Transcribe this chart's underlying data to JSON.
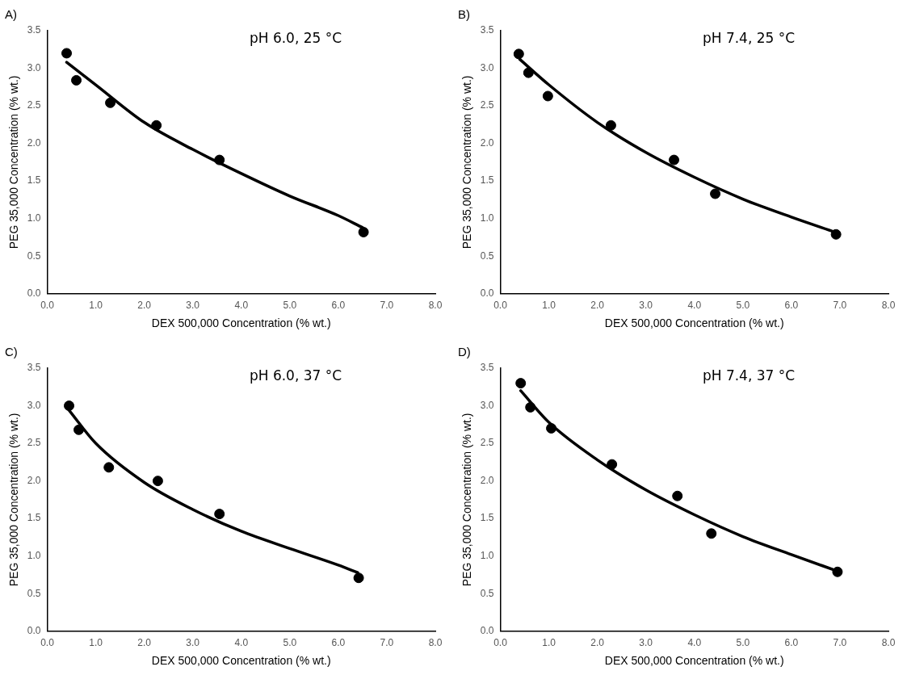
{
  "chart_data": [
    {
      "type": "scatter",
      "title": "A)",
      "xlabel": "DEX 500,000 Concentration (% wt.)",
      "ylabel": "PEG 35,000 Concentration (% wt.)",
      "annotations": [
        "pH 6.0, 25 °C"
      ],
      "grid": false,
      "legend": false,
      "xlim": [
        0,
        8
      ],
      "xticks": [
        {
          "value": 0,
          "label": "0.0"
        },
        {
          "value": 1,
          "label": "1.0"
        },
        {
          "value": 2,
          "label": "2.0"
        },
        {
          "value": 3,
          "label": "3.0"
        },
        {
          "value": 4,
          "label": "4.0"
        },
        {
          "value": 5,
          "label": "5.0"
        },
        {
          "value": 6,
          "label": "6.0"
        },
        {
          "value": 7,
          "label": "7.0"
        },
        {
          "value": 8,
          "label": "8.0"
        }
      ],
      "ylim": [
        0,
        3.5
      ],
      "yticks": [
        {
          "value": 0,
          "label": "0.0"
        },
        0.5,
        {
          "value": 1,
          "label": "1.0"
        },
        1.5,
        {
          "value": 2,
          "label": "2.0"
        },
        2.5,
        {
          "value": 3,
          "label": "3.0"
        },
        3.5
      ],
      "series": [
        {
          "type": "scatter",
          "marker": "circle",
          "color": "#000000",
          "x": [
            0.4,
            0.6,
            1.3,
            2.25,
            3.55,
            6.52
          ],
          "values": [
            3.2,
            2.84,
            2.54,
            2.24,
            1.78,
            0.82
          ]
        },
        {
          "type": "line",
          "marker": "none",
          "line_style": "solid",
          "color": "#000000",
          "x": [
            0.4,
            1,
            2,
            3,
            4,
            5,
            6,
            6.5
          ],
          "values": [
            3.08,
            2.78,
            2.28,
            1.92,
            1.6,
            1.3,
            1.04,
            0.88
          ]
        }
      ]
    },
    {
      "type": "scatter",
      "title": "B)",
      "xlabel": "DEX 500,000 Concentration (% wt.)",
      "ylabel": "PEG 35,000 Concentration (% wt.)",
      "annotations": [
        "pH 7.4, 25 °C"
      ],
      "grid": false,
      "legend": false,
      "xlim": [
        0,
        8
      ],
      "xticks": [
        {
          "value": 0,
          "label": "0.0"
        },
        {
          "value": 1,
          "label": "1.0"
        },
        {
          "value": 2,
          "label": "2.0"
        },
        {
          "value": 3,
          "label": "3.0"
        },
        {
          "value": 4,
          "label": "4.0"
        },
        {
          "value": 5,
          "label": "5.0"
        },
        {
          "value": 6,
          "label": "6.0"
        },
        {
          "value": 7,
          "label": "7.0"
        },
        {
          "value": 8,
          "label": "8.0"
        }
      ],
      "ylim": [
        0,
        3.5
      ],
      "yticks": [
        {
          "value": 0,
          "label": "0.0"
        },
        0.5,
        {
          "value": 1,
          "label": "1.0"
        },
        1.5,
        {
          "value": 2,
          "label": "2.0"
        },
        2.5,
        {
          "value": 3,
          "label": "3.0"
        },
        3.5
      ],
      "series": [
        {
          "type": "scatter",
          "marker": "circle",
          "color": "#000000",
          "x": [
            0.38,
            0.58,
            0.98,
            2.28,
            3.58,
            4.43,
            6.92
          ],
          "values": [
            3.19,
            2.94,
            2.63,
            2.24,
            1.78,
            1.33,
            0.79
          ]
        },
        {
          "type": "line",
          "marker": "none",
          "line_style": "solid",
          "color": "#000000",
          "x": [
            0.4,
            1,
            2,
            3,
            4,
            5,
            6,
            6.9
          ],
          "values": [
            3.12,
            2.78,
            2.28,
            1.88,
            1.55,
            1.26,
            1.02,
            0.82
          ]
        }
      ]
    },
    {
      "type": "scatter",
      "title": "C)",
      "xlabel": "DEX 500,000 Concentration (% wt.)",
      "ylabel": "PEG 35,000 Concentration (% wt.)",
      "annotations": [
        "pH 6.0, 37 °C"
      ],
      "grid": false,
      "legend": false,
      "xlim": [
        0,
        8
      ],
      "xticks": [
        {
          "value": 0,
          "label": "0.0"
        },
        {
          "value": 1,
          "label": "1.0"
        },
        {
          "value": 2,
          "label": "2.0"
        },
        {
          "value": 3,
          "label": "3.0"
        },
        {
          "value": 4,
          "label": "4.0"
        },
        {
          "value": 5,
          "label": "5.0"
        },
        {
          "value": 6,
          "label": "6.0"
        },
        {
          "value": 7,
          "label": "7.0"
        },
        {
          "value": 8,
          "label": "8.0"
        }
      ],
      "ylim": [
        0,
        3.5
      ],
      "yticks": [
        {
          "value": 0,
          "label": "0.0"
        },
        0.5,
        {
          "value": 1,
          "label": "1.0"
        },
        1.5,
        {
          "value": 2,
          "label": "2.0"
        },
        2.5,
        {
          "value": 3,
          "label": "3.0"
        },
        3.5
      ],
      "series": [
        {
          "type": "scatter",
          "marker": "circle",
          "color": "#000000",
          "x": [
            0.45,
            0.65,
            1.27,
            2.28,
            3.55,
            6.42
          ],
          "values": [
            3.0,
            2.68,
            2.18,
            2.0,
            1.56,
            0.71
          ]
        },
        {
          "type": "line",
          "marker": "none",
          "line_style": "solid",
          "color": "#000000",
          "x": [
            0.45,
            1,
            2,
            3,
            4,
            5,
            6,
            6.4
          ],
          "values": [
            2.94,
            2.5,
            1.98,
            1.62,
            1.33,
            1.1,
            0.88,
            0.78
          ]
        }
      ]
    },
    {
      "type": "scatter",
      "title": "D)",
      "xlabel": "DEX 500,000 Concentration (% wt.)",
      "ylabel": "PEG 35,000 Concentration (% wt.)",
      "annotations": [
        "pH 7.4, 37 °C"
      ],
      "grid": false,
      "legend": false,
      "xlim": [
        0,
        8
      ],
      "xticks": [
        {
          "value": 0,
          "label": "0.0"
        },
        {
          "value": 1,
          "label": "1.0"
        },
        {
          "value": 2,
          "label": "2.0"
        },
        {
          "value": 3,
          "label": "3.0"
        },
        {
          "value": 4,
          "label": "4.0"
        },
        {
          "value": 5,
          "label": "5.0"
        },
        {
          "value": 6,
          "label": "6.0"
        },
        {
          "value": 7,
          "label": "7.0"
        },
        {
          "value": 8,
          "label": "8.0"
        }
      ],
      "ylim": [
        0,
        3.5
      ],
      "yticks": [
        {
          "value": 0,
          "label": "0.0"
        },
        0.5,
        {
          "value": 1,
          "label": "1.0"
        },
        1.5,
        {
          "value": 2,
          "label": "2.0"
        },
        2.5,
        {
          "value": 3,
          "label": "3.0"
        },
        3.5
      ],
      "series": [
        {
          "type": "scatter",
          "marker": "circle",
          "color": "#000000",
          "x": [
            0.42,
            0.62,
            1.05,
            2.3,
            3.65,
            4.35,
            6.95
          ],
          "values": [
            3.3,
            2.98,
            2.7,
            2.22,
            1.8,
            1.3,
            0.79
          ]
        },
        {
          "type": "line",
          "marker": "none",
          "line_style": "solid",
          "color": "#000000",
          "x": [
            0.42,
            1,
            2,
            3,
            4,
            5,
            6,
            6.95
          ],
          "values": [
            3.2,
            2.78,
            2.28,
            1.88,
            1.55,
            1.26,
            1.02,
            0.8
          ]
        }
      ]
    }
  ]
}
